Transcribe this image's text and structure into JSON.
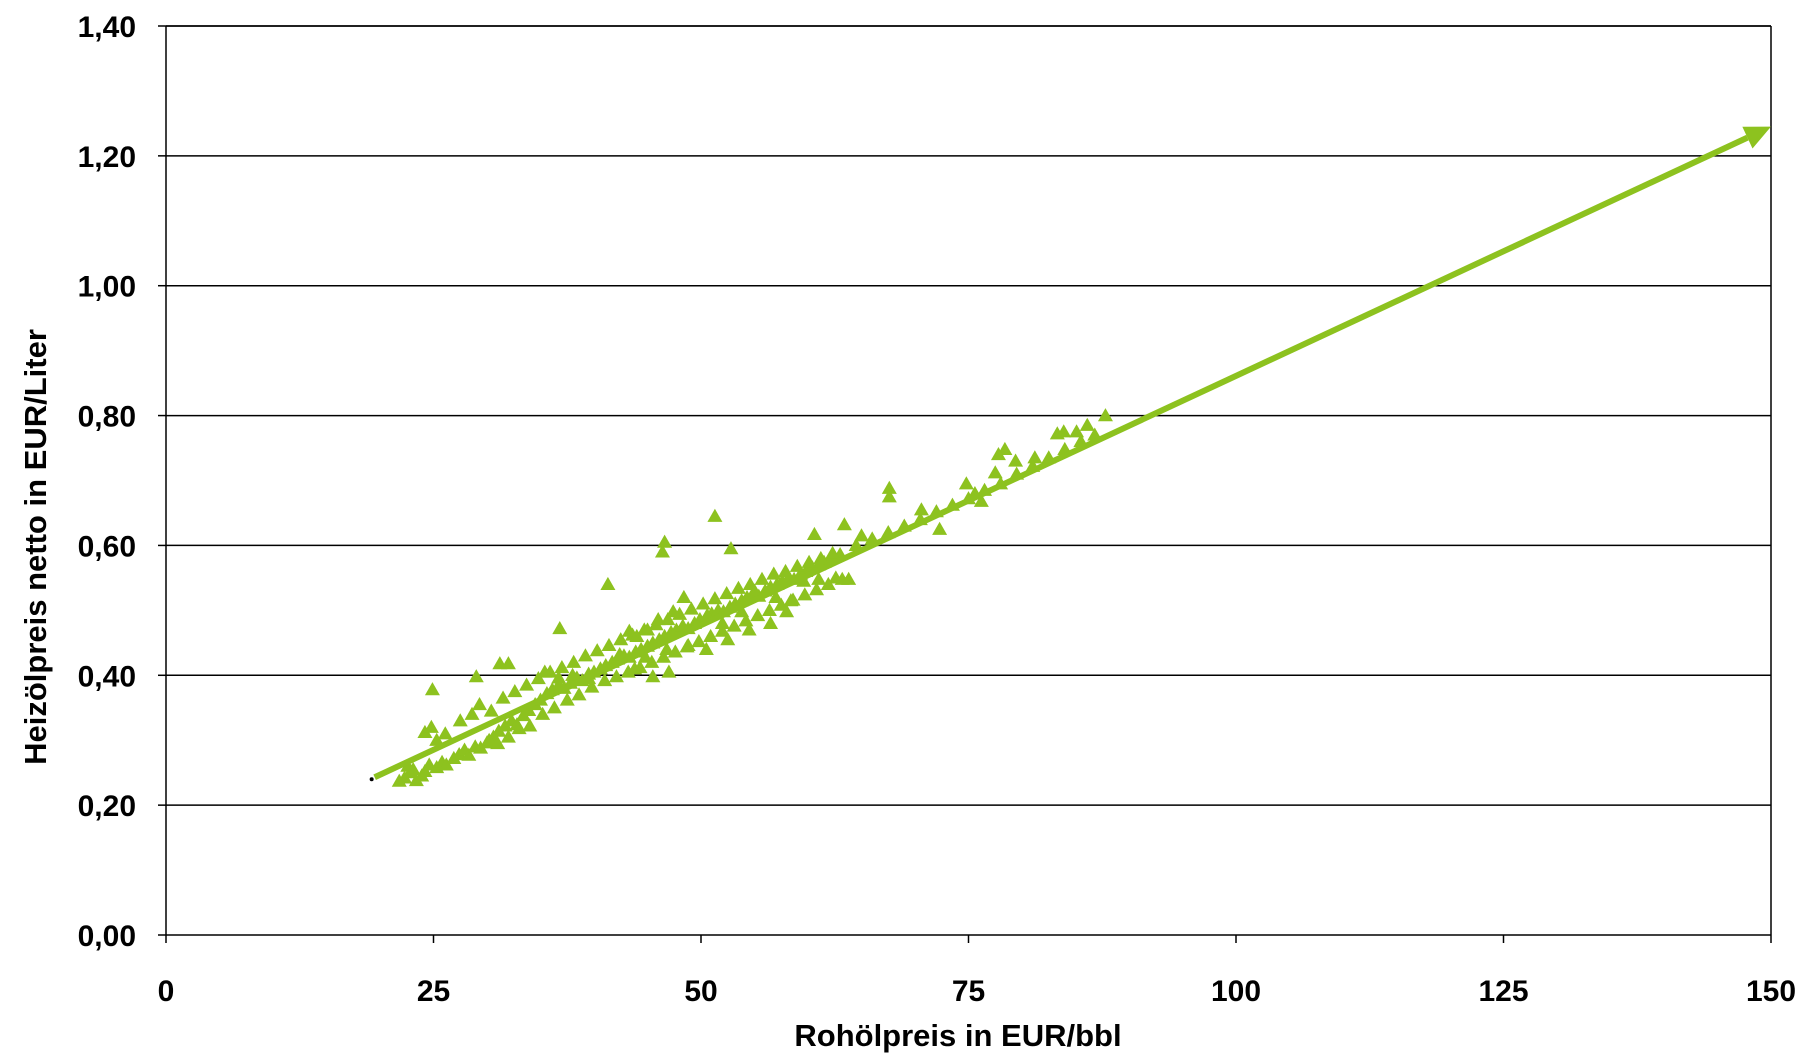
{
  "chart_data": {
    "type": "scatter",
    "xlabel": "Rohölpreis in EUR/bbl",
    "ylabel": "Heizölpreis netto in EUR/Liter",
    "xlim": [
      0,
      150
    ],
    "ylim": [
      0,
      1.4
    ],
    "x_ticks": [
      "0",
      "25",
      "50",
      "75",
      "100",
      "125",
      "150"
    ],
    "y_ticks": [
      "0,00",
      "0,20",
      "0,40",
      "0,60",
      "0,80",
      "1,00",
      "1,20",
      "1,40"
    ],
    "grid": "horizontal",
    "colors": {
      "series": "#8dc21f",
      "grid": "#000000",
      "text": "#000000"
    },
    "trend_line": {
      "x": [
        19.5,
        150
      ],
      "y": [
        0.243,
        1.245
      ],
      "arrow_end": true
    },
    "series": [
      {
        "marker": "triangle",
        "points": [
          [
            21.8,
            0.237
          ],
          [
            22.3,
            0.242
          ],
          [
            22.8,
            0.25
          ],
          [
            23.4,
            0.238
          ],
          [
            23.9,
            0.245
          ],
          [
            24.2,
            0.252
          ],
          [
            22.6,
            0.26
          ],
          [
            23.1,
            0.255
          ],
          [
            24.6,
            0.262
          ],
          [
            25.3,
            0.258
          ],
          [
            25.8,
            0.266
          ],
          [
            26.2,
            0.262
          ],
          [
            26.9,
            0.272
          ],
          [
            27.4,
            0.278
          ],
          [
            27.9,
            0.285
          ],
          [
            28.3,
            0.277
          ],
          [
            28.9,
            0.29
          ],
          [
            29.4,
            0.288
          ],
          [
            30.0,
            0.296
          ],
          [
            30.6,
            0.305
          ],
          [
            31.1,
            0.314
          ],
          [
            31.7,
            0.322
          ],
          [
            32.3,
            0.33
          ],
          [
            32.8,
            0.324
          ],
          [
            33.4,
            0.338
          ],
          [
            33.9,
            0.346
          ],
          [
            34.5,
            0.355
          ],
          [
            35.0,
            0.362
          ],
          [
            35.6,
            0.372
          ],
          [
            36.1,
            0.378
          ],
          [
            36.7,
            0.385
          ],
          [
            37.2,
            0.38
          ],
          [
            37.8,
            0.388
          ],
          [
            38.4,
            0.396
          ],
          [
            38.9,
            0.392
          ],
          [
            39.5,
            0.402
          ],
          [
            40.0,
            0.405
          ],
          [
            40.6,
            0.41
          ],
          [
            41.1,
            0.415
          ],
          [
            41.7,
            0.42
          ],
          [
            42.2,
            0.425
          ],
          [
            42.8,
            0.43
          ],
          [
            43.3,
            0.428
          ],
          [
            43.9,
            0.436
          ],
          [
            44.4,
            0.44
          ],
          [
            45.0,
            0.445
          ],
          [
            45.5,
            0.45
          ],
          [
            46.1,
            0.455
          ],
          [
            46.6,
            0.46
          ],
          [
            47.2,
            0.466
          ],
          [
            47.7,
            0.47
          ],
          [
            48.3,
            0.476
          ],
          [
            48.8,
            0.472
          ],
          [
            49.4,
            0.48
          ],
          [
            49.9,
            0.486
          ],
          [
            50.5,
            0.49
          ],
          [
            51.0,
            0.495
          ],
          [
            51.6,
            0.5
          ],
          [
            52.1,
            0.498
          ],
          [
            52.7,
            0.505
          ],
          [
            53.2,
            0.51
          ],
          [
            53.8,
            0.515
          ],
          [
            54.3,
            0.52
          ],
          [
            54.9,
            0.525
          ],
          [
            55.4,
            0.522
          ],
          [
            56.0,
            0.53
          ],
          [
            56.5,
            0.536
          ],
          [
            57.1,
            0.54
          ],
          [
            57.6,
            0.545
          ],
          [
            58.2,
            0.55
          ],
          [
            58.7,
            0.548
          ],
          [
            59.3,
            0.556
          ],
          [
            59.8,
            0.56
          ],
          [
            60.4,
            0.566
          ],
          [
            61.0,
            0.57
          ],
          [
            61.5,
            0.574
          ],
          [
            62.1,
            0.58
          ],
          [
            63.0,
            0.586
          ],
          [
            64.5,
            0.6
          ],
          [
            66.0,
            0.61
          ],
          [
            67.5,
            0.62
          ],
          [
            69.0,
            0.63
          ],
          [
            70.5,
            0.64
          ],
          [
            72.0,
            0.652
          ],
          [
            73.5,
            0.662
          ],
          [
            75.0,
            0.672
          ],
          [
            76.5,
            0.685
          ],
          [
            78.0,
            0.695
          ],
          [
            79.5,
            0.71
          ],
          [
            81.0,
            0.722
          ],
          [
            82.5,
            0.735
          ],
          [
            84.0,
            0.748
          ],
          [
            85.5,
            0.76
          ],
          [
            86.8,
            0.77
          ],
          [
            24.2,
            0.312
          ],
          [
            24.8,
            0.32
          ],
          [
            25.3,
            0.3
          ],
          [
            26.1,
            0.31
          ],
          [
            27.5,
            0.33
          ],
          [
            28.6,
            0.34
          ],
          [
            29.3,
            0.355
          ],
          [
            30.4,
            0.345
          ],
          [
            31.5,
            0.365
          ],
          [
            32.6,
            0.375
          ],
          [
            33.7,
            0.385
          ],
          [
            34.8,
            0.395
          ],
          [
            35.9,
            0.405
          ],
          [
            37.0,
            0.412
          ],
          [
            38.1,
            0.42
          ],
          [
            39.2,
            0.43
          ],
          [
            40.3,
            0.438
          ],
          [
            41.4,
            0.446
          ],
          [
            42.5,
            0.455
          ],
          [
            43.6,
            0.462
          ],
          [
            44.7,
            0.47
          ],
          [
            45.8,
            0.478
          ],
          [
            46.9,
            0.486
          ],
          [
            48.0,
            0.494
          ],
          [
            49.1,
            0.502
          ],
          [
            50.2,
            0.51
          ],
          [
            51.3,
            0.518
          ],
          [
            52.4,
            0.526
          ],
          [
            53.5,
            0.534
          ],
          [
            54.6,
            0.54
          ],
          [
            55.7,
            0.548
          ],
          [
            56.8,
            0.556
          ],
          [
            57.9,
            0.56
          ],
          [
            59.0,
            0.568
          ],
          [
            60.1,
            0.574
          ],
          [
            61.2,
            0.58
          ],
          [
            62.3,
            0.588
          ],
          [
            30.2,
            0.3
          ],
          [
            31.0,
            0.295
          ],
          [
            32.0,
            0.305
          ],
          [
            33.0,
            0.318
          ],
          [
            34.0,
            0.322
          ],
          [
            35.2,
            0.34
          ],
          [
            36.3,
            0.35
          ],
          [
            37.5,
            0.362
          ],
          [
            38.6,
            0.37
          ],
          [
            39.8,
            0.382
          ],
          [
            41.0,
            0.392
          ],
          [
            42.1,
            0.398
          ],
          [
            43.2,
            0.405
          ],
          [
            44.3,
            0.412
          ],
          [
            45.4,
            0.42
          ],
          [
            46.5,
            0.428
          ],
          [
            47.6,
            0.436
          ],
          [
            48.7,
            0.444
          ],
          [
            49.8,
            0.452
          ],
          [
            50.9,
            0.46
          ],
          [
            52.0,
            0.468
          ],
          [
            53.1,
            0.476
          ],
          [
            54.2,
            0.484
          ],
          [
            55.3,
            0.492
          ],
          [
            56.4,
            0.5
          ],
          [
            57.5,
            0.508
          ],
          [
            58.6,
            0.516
          ],
          [
            59.7,
            0.524
          ],
          [
            60.8,
            0.532
          ],
          [
            61.9,
            0.54
          ],
          [
            63.2,
            0.548
          ],
          [
            24.9,
            0.378
          ],
          [
            29.0,
            0.398
          ],
          [
            31.2,
            0.418
          ],
          [
            32.0,
            0.418
          ],
          [
            36.8,
            0.472
          ],
          [
            41.3,
            0.54
          ],
          [
            46.6,
            0.605
          ],
          [
            46.4,
            0.59
          ],
          [
            51.3,
            0.645
          ],
          [
            52.8,
            0.595
          ],
          [
            60.6,
            0.617
          ],
          [
            63.4,
            0.632
          ],
          [
            65.0,
            0.615
          ],
          [
            67.6,
            0.688
          ],
          [
            67.6,
            0.675
          ],
          [
            70.6,
            0.655
          ],
          [
            74.8,
            0.695
          ],
          [
            75.6,
            0.68
          ],
          [
            77.5,
            0.712
          ],
          [
            78.4,
            0.748
          ],
          [
            77.8,
            0.74
          ],
          [
            81.2,
            0.735
          ],
          [
            83.3,
            0.772
          ],
          [
            83.9,
            0.775
          ],
          [
            85.1,
            0.775
          ],
          [
            86.1,
            0.785
          ],
          [
            87.8,
            0.8
          ],
          [
            79.4,
            0.73
          ],
          [
            76.2,
            0.668
          ],
          [
            72.3,
            0.625
          ],
          [
            35.4,
            0.405
          ],
          [
            36.7,
            0.396
          ],
          [
            38.0,
            0.4
          ],
          [
            39.5,
            0.395
          ],
          [
            43.3,
            0.468
          ],
          [
            44.0,
            0.46
          ],
          [
            45.0,
            0.47
          ],
          [
            46.0,
            0.486
          ],
          [
            47.4,
            0.498
          ],
          [
            48.4,
            0.52
          ],
          [
            50.6,
            0.492
          ],
          [
            52.0,
            0.48
          ],
          [
            53.8,
            0.498
          ],
          [
            55.0,
            0.53
          ],
          [
            57.0,
            0.52
          ],
          [
            58.4,
            0.515
          ],
          [
            59.6,
            0.545
          ],
          [
            61.0,
            0.548
          ],
          [
            62.6,
            0.55
          ],
          [
            63.8,
            0.548
          ],
          [
            42.4,
            0.432
          ],
          [
            44.8,
            0.428
          ],
          [
            46.8,
            0.44
          ],
          [
            48.8,
            0.446
          ],
          [
            50.5,
            0.44
          ],
          [
            52.5,
            0.455
          ],
          [
            54.5,
            0.47
          ],
          [
            56.5,
            0.48
          ],
          [
            58.0,
            0.498
          ],
          [
            47.0,
            0.405
          ],
          [
            45.5,
            0.398
          ],
          [
            43.8,
            0.41
          ]
        ]
      }
    ]
  }
}
